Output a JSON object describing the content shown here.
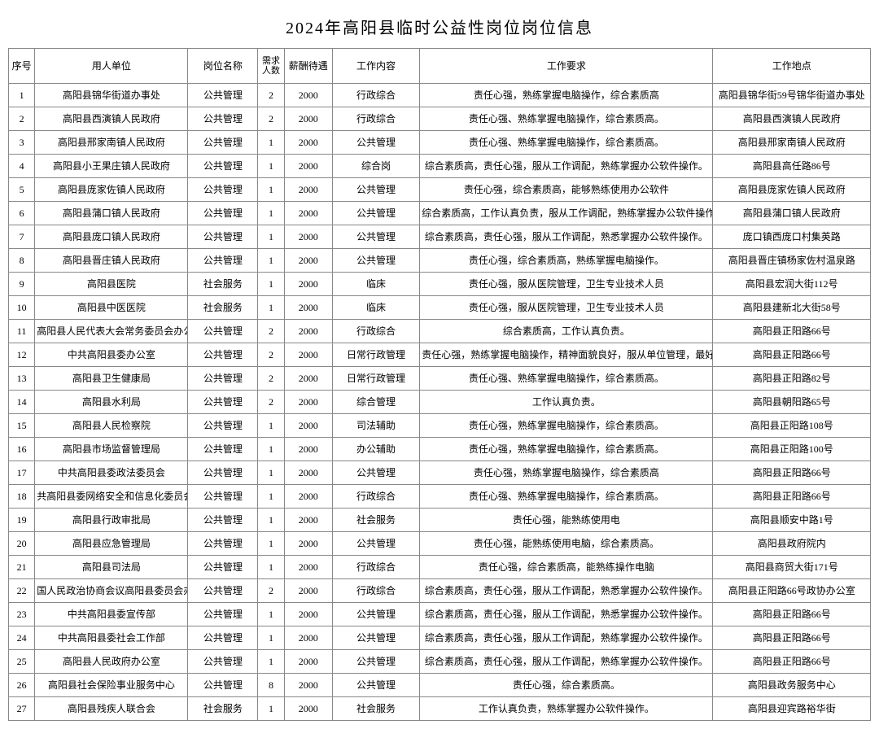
{
  "title": "2024年高阳县临时公益性岗位岗位信息",
  "headers": {
    "seq": "序号",
    "employer": "用人单位",
    "position": "岗位名称",
    "count": "需求人数",
    "salary": "薪酬待遇",
    "content": "工作内容",
    "req": "工作要求",
    "location": "工作地点"
  },
  "rows": [
    {
      "seq": "1",
      "employer": "高阳县锦华街道办事处",
      "position": "公共管理",
      "count": "2",
      "salary": "2000",
      "content": "行政综合",
      "req": "责任心强，熟练掌握电脑操作，综合素质高",
      "location": "高阳县锦华街59号锦华街道办事处"
    },
    {
      "seq": "2",
      "employer": "高阳县西演镇人民政府",
      "position": "公共管理",
      "count": "2",
      "salary": "2000",
      "content": "行政综合",
      "req": "责任心强、熟练掌握电脑操作，综合素质高。",
      "location": "高阳县西演镇人民政府"
    },
    {
      "seq": "3",
      "employer": "高阳县邢家南镇人民政府",
      "position": "公共管理",
      "count": "1",
      "salary": "2000",
      "content": "公共管理",
      "req": "责任心强、熟练掌握电脑操作，综合素质高。",
      "location": "高阳县邢家南镇人民政府"
    },
    {
      "seq": "4",
      "employer": "高阳县小王果庄镇人民政府",
      "position": "公共管理",
      "count": "1",
      "salary": "2000",
      "content": "综合岗",
      "req": "综合素质高，责任心强，服从工作调配，熟练掌握办公软件操作。",
      "location": "高阳县高任路86号"
    },
    {
      "seq": "5",
      "employer": "高阳县庞家佐镇人民政府",
      "position": "公共管理",
      "count": "1",
      "salary": "2000",
      "content": "公共管理",
      "req": "责任心强，综合素质高，能够熟练使用办公软件",
      "location": "高阳县庞家佐镇人民政府"
    },
    {
      "seq": "6",
      "employer": "高阳县蒲口镇人民政府",
      "position": "公共管理",
      "count": "1",
      "salary": "2000",
      "content": "公共管理",
      "req": "综合素质高，工作认真负责，服从工作调配，熟练掌握办公软件操作。",
      "location": "高阳县蒲口镇人民政府"
    },
    {
      "seq": "7",
      "employer": "高阳县庞口镇人民政府",
      "position": "公共管理",
      "count": "1",
      "salary": "2000",
      "content": "公共管理",
      "req": "综合素质高，责任心强，服从工作调配，熟悉掌握办公软件操作。",
      "location": "庞口镇西庞口村集英路"
    },
    {
      "seq": "8",
      "employer": "高阳县晋庄镇人民政府",
      "position": "公共管理",
      "count": "1",
      "salary": "2000",
      "content": "公共管理",
      "req": "责任心强，综合素质高，熟练掌握电脑操作。",
      "location": "高阳县晋庄镇杨家佐村温泉路"
    },
    {
      "seq": "9",
      "employer": "高阳县医院",
      "position": "社会服务",
      "count": "1",
      "salary": "2000",
      "content": "临床",
      "req": "责任心强，服从医院管理，卫生专业技术人员",
      "location": "高阳县宏润大街112号"
    },
    {
      "seq": "10",
      "employer": "高阳县中医医院",
      "position": "社会服务",
      "count": "1",
      "salary": "2000",
      "content": "临床",
      "req": "责任心强，服从医院管理，卫生专业技术人员",
      "location": "高阳县建新北大街58号"
    },
    {
      "seq": "11",
      "employer": "高阳县人民代表大会常务委员会办公室",
      "position": "公共管理",
      "count": "2",
      "salary": "2000",
      "content": "行政综合",
      "req": "综合素质高，工作认真负责。",
      "location": "高阳县正阳路66号"
    },
    {
      "seq": "12",
      "employer": "中共高阳县委办公室",
      "position": "公共管理",
      "count": "2",
      "salary": "2000",
      "content": "日常行政管理",
      "req": "责任心强，熟练掌握电脑操作，精神面貌良好，服从单位管理，最好有",
      "location": "高阳县正阳路66号"
    },
    {
      "seq": "13",
      "employer": "高阳县卫生健康局",
      "position": "公共管理",
      "count": "2",
      "salary": "2000",
      "content": "日常行政管理",
      "req": "责任心强、熟练掌握电脑操作，综合素质高。",
      "location": "高阳县正阳路82号"
    },
    {
      "seq": "14",
      "employer": "高阳县水利局",
      "position": "公共管理",
      "count": "2",
      "salary": "2000",
      "content": "综合管理",
      "req": "工作认真负责。",
      "location": "高阳县朝阳路65号"
    },
    {
      "seq": "15",
      "employer": "高阳县人民检察院",
      "position": "公共管理",
      "count": "1",
      "salary": "2000",
      "content": "司法辅助",
      "req": "责任心强，熟练掌握电脑操作，综合素质高。",
      "location": "高阳县正阳路108号"
    },
    {
      "seq": "16",
      "employer": "高阳县市场监督管理局",
      "position": "公共管理",
      "count": "1",
      "salary": "2000",
      "content": "办公辅助",
      "req": "责任心强，熟练掌握电脑操作，综合素质高。",
      "location": "高阳县正阳路100号"
    },
    {
      "seq": "17",
      "employer": "中共高阳县委政法委员会",
      "position": "公共管理",
      "count": "1",
      "salary": "2000",
      "content": "公共管理",
      "req": "责任心强，熟练掌握电脑操作，综合素质高",
      "location": "高阳县正阳路66号"
    },
    {
      "seq": "18",
      "employer": "共高阳县委网络安全和信息化委员会办公",
      "position": "公共管理",
      "count": "1",
      "salary": "2000",
      "content": "行政综合",
      "req": "责任心强、熟练掌握电脑操作，综合素质高。",
      "location": "高阳县正阳路66号"
    },
    {
      "seq": "19",
      "employer": "高阳县行政审批局",
      "position": "公共管理",
      "count": "1",
      "salary": "2000",
      "content": "社会服务",
      "req": "责任心强，能熟练使用电",
      "location": "高阳县顺安中路1号"
    },
    {
      "seq": "20",
      "employer": "高阳县应急管理局",
      "position": "公共管理",
      "count": "1",
      "salary": "2000",
      "content": "公共管理",
      "req": "责任心强，能熟练使用电脑，综合素质高。",
      "location": "高阳县政府院内"
    },
    {
      "seq": "21",
      "employer": "高阳县司法局",
      "position": "公共管理",
      "count": "1",
      "salary": "2000",
      "content": "行政综合",
      "req": "责任心强，综合素质高，能熟练操作电脑",
      "location": "高阳县商贸大街171号"
    },
    {
      "seq": "22",
      "employer": "国人民政治协商会议高阳县委员会办公室",
      "position": "公共管理",
      "count": "2",
      "salary": "2000",
      "content": "行政综合",
      "req": "综合素质高，责任心强，服从工作调配，熟悉掌握办公软件操作。",
      "location": "高阳县正阳路66号政协办公室"
    },
    {
      "seq": "23",
      "employer": "中共高阳县委宣传部",
      "position": "公共管理",
      "count": "1",
      "salary": "2000",
      "content": "公共管理",
      "req": "综合素质高，责任心强，服从工作调配，熟悉掌握办公软件操作。",
      "location": "高阳县正阳路66号"
    },
    {
      "seq": "24",
      "employer": "中共高阳县委社会工作部",
      "position": "公共管理",
      "count": "1",
      "salary": "2000",
      "content": "公共管理",
      "req": "综合素质高，责任心强，服从工作调配，熟练掌握办公软件操作。",
      "location": "高阳县正阳路66号"
    },
    {
      "seq": "25",
      "employer": "高阳县人民政府办公室",
      "position": "公共管理",
      "count": "1",
      "salary": "2000",
      "content": "公共管理",
      "req": "综合素质高，责任心强，服从工作调配，熟练掌握办公软件操作。",
      "location": "高阳县正阳路66号"
    },
    {
      "seq": "26",
      "employer": "高阳县社会保险事业服务中心",
      "position": "公共管理",
      "count": "8",
      "salary": "2000",
      "content": "公共管理",
      "req": "责任心强，综合素质高。",
      "location": "高阳县政务服务中心"
    },
    {
      "seq": "27",
      "employer": "高阳县残疾人联合会",
      "position": "社会服务",
      "count": "1",
      "salary": "2000",
      "content": "社会服务",
      "req": "工作认真负责，熟练掌握办公软件操作。",
      "location": "高阳县迎宾路裕华街"
    }
  ],
  "styling": {
    "title_fontsize": 20,
    "cell_fontsize": 12,
    "border_color": "#888888",
    "background_color": "#ffffff",
    "text_color": "#000000",
    "font_family": "SimSun"
  }
}
